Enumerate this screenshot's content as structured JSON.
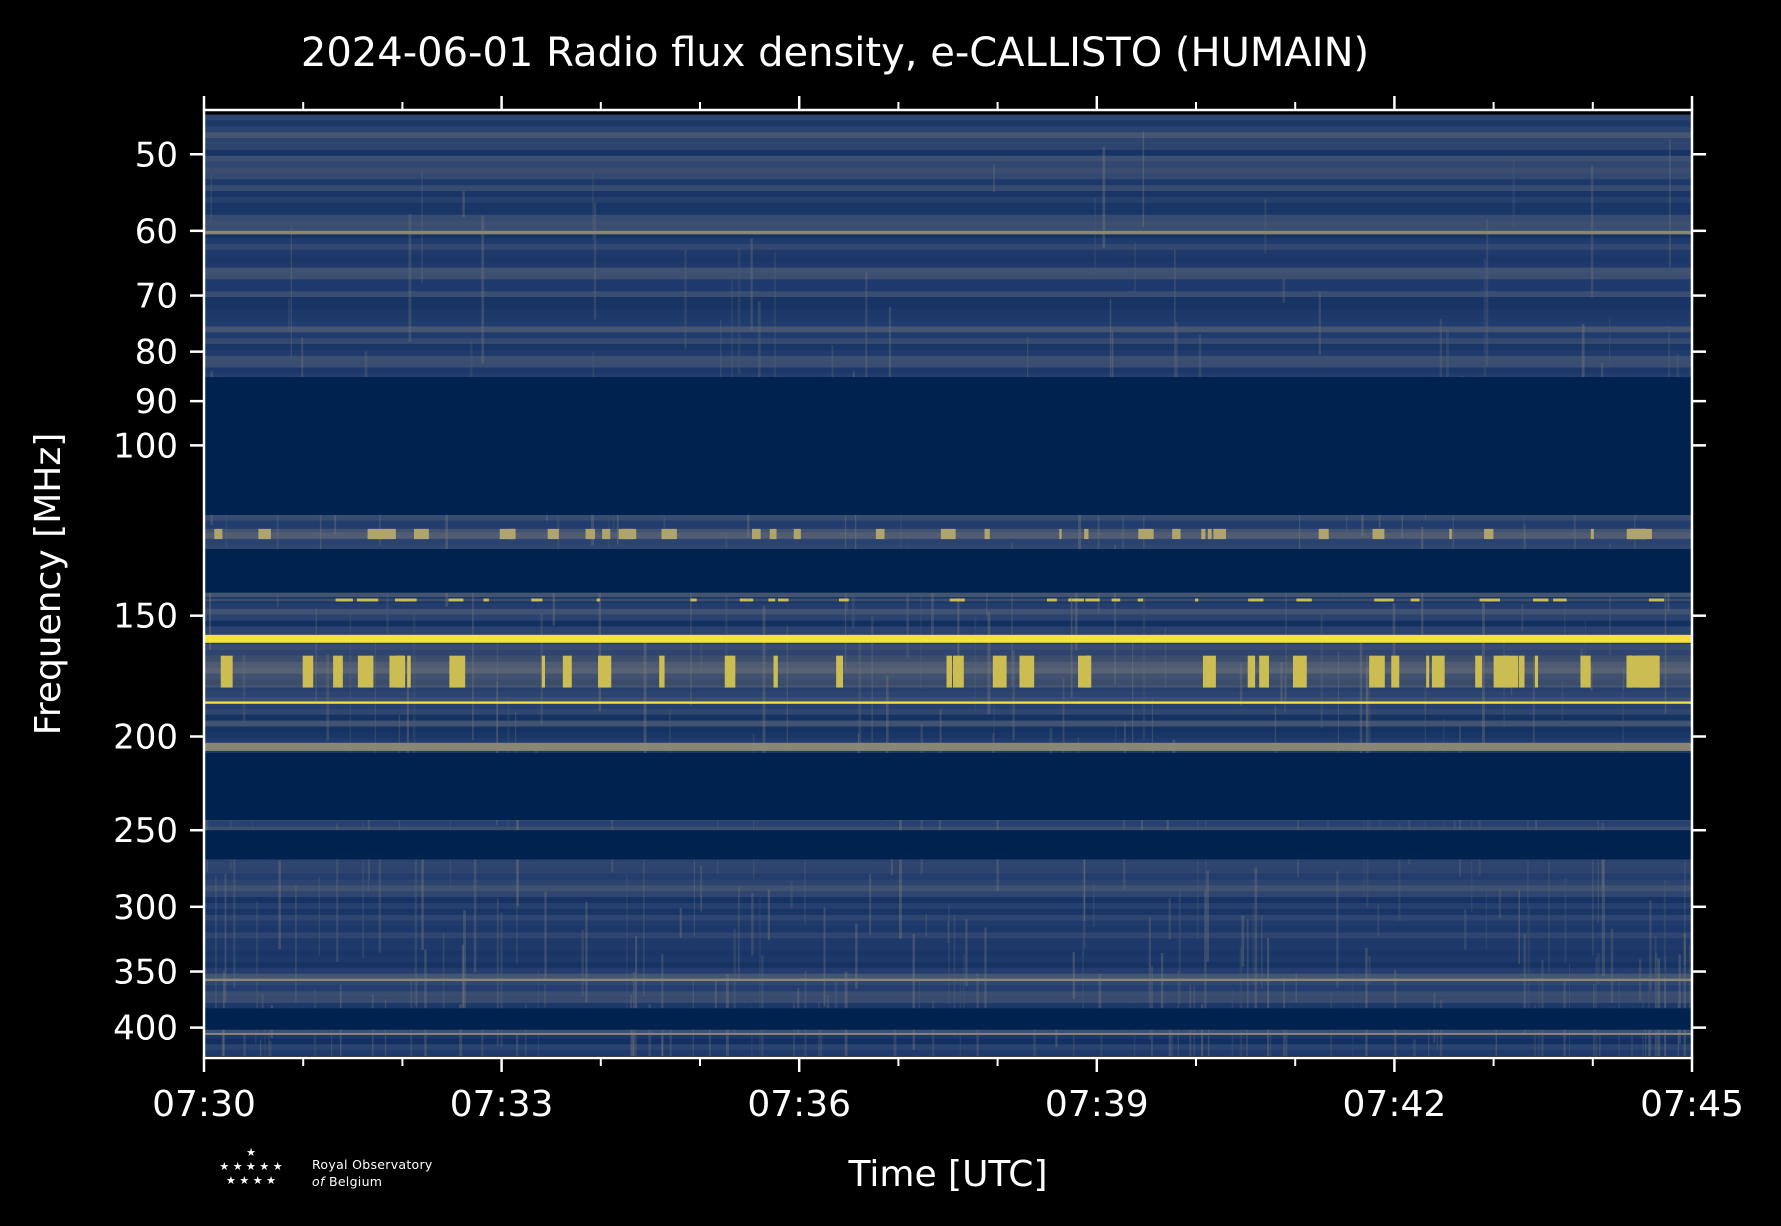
{
  "chart_data": {
    "type": "heatmap",
    "title": "2024-06-01 Radio flux density, e-CALLISTO (HUMAIN)",
    "xlabel": "Time [UTC]",
    "ylabel": "Frequency [MHz]",
    "x_ticks": [
      "07:30",
      "07:33",
      "07:36",
      "07:39",
      "07:42",
      "07:45"
    ],
    "y_ticks": [
      50,
      60,
      70,
      80,
      90,
      100,
      150,
      200,
      250,
      300,
      350,
      400
    ],
    "xlim": [
      "07:30",
      "07:45"
    ],
    "ylim_mhz": [
      45,
      430
    ],
    "y_scale": "log, inverted (frequency increases downward)",
    "colormap": "cividis",
    "colors": {
      "background": "#000000",
      "low": "#00224e",
      "mid": "#7d7c78",
      "high": "#fee838"
    },
    "saturated_bands_mhz": [
      {
        "from": 85,
        "to": 118,
        "level": "low"
      },
      {
        "from": 128,
        "to": 142,
        "level": "low"
      },
      {
        "from": 208,
        "to": 244,
        "level": "low"
      },
      {
        "from": 250,
        "to": 268,
        "level": "low"
      },
      {
        "from": 382,
        "to": 402,
        "level": "low"
      }
    ],
    "bright_bands_mhz": [
      {
        "from": 157,
        "to": 160,
        "level": "high"
      },
      {
        "from": 165,
        "to": 178,
        "level": "high",
        "intermittent": true
      },
      {
        "from": 184,
        "to": 185,
        "level": "high"
      },
      {
        "from": 144,
        "to": 145,
        "level": "high",
        "intermittent": true
      },
      {
        "from": 122,
        "to": 125,
        "level": "mid-high",
        "intermittent": true
      },
      {
        "from": 60,
        "to": 60.5,
        "level": "mid"
      },
      {
        "from": 203,
        "to": 207,
        "level": "mid"
      },
      {
        "from": 356,
        "to": 358,
        "level": "mid"
      },
      {
        "from": 405,
        "to": 407,
        "level": "mid"
      }
    ]
  },
  "logo": {
    "stars_top": "★",
    "stars_middle": "★ ★ ★ ★ ★",
    "stars_bottom": "★ ★ ★ ★",
    "line1": "Royal Observatory",
    "line2_prefix": "of",
    "line2_rest": "Belgium"
  }
}
